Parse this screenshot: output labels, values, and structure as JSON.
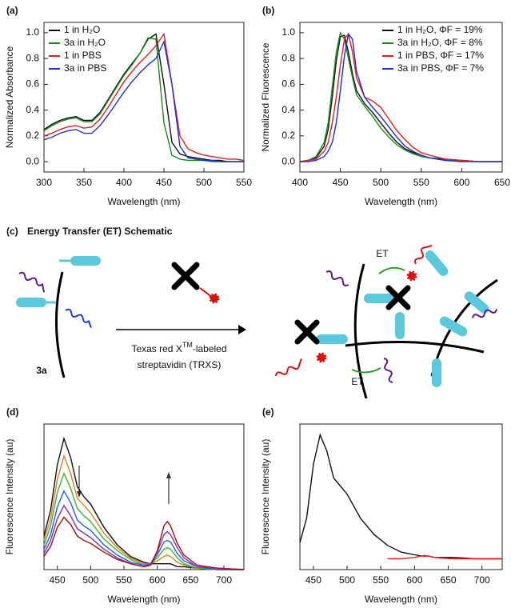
{
  "chart_data": [
    {
      "type": "line",
      "label": "(a)",
      "xlabel": "Wavelength (nm)",
      "ylabel": "Normalized Absorbance",
      "x": [
        300,
        310,
        320,
        330,
        340,
        350,
        360,
        370,
        380,
        390,
        400,
        410,
        420,
        430,
        440,
        450,
        460,
        470,
        480,
        490,
        500,
        510,
        520,
        530,
        540,
        550
      ],
      "xlim": [
        300,
        550
      ],
      "xticks": [
        300,
        350,
        400,
        450,
        500,
        550
      ],
      "ylim": [
        -0.08,
        1.08
      ],
      "yticks": [
        {
          "value": 0,
          "label": "0.0"
        },
        0.2,
        0.4,
        0.6,
        0.8,
        {
          "value": 1,
          "label": "1.0"
        }
      ],
      "legend": "upper left",
      "series": [
        {
          "name": "1 in H₂O",
          "color": "#111111",
          "values": [
            0.25,
            0.29,
            0.32,
            0.34,
            0.35,
            0.32,
            0.32,
            0.38,
            0.48,
            0.58,
            0.68,
            0.76,
            0.84,
            0.95,
            0.99,
            0.6,
            0.15,
            0.06,
            0.04,
            0.03,
            0.02,
            0.01,
            0.01,
            0,
            0,
            0
          ]
        },
        {
          "name": "3a in H₂O",
          "color": "#1a8a1a",
          "values": [
            0.24,
            0.28,
            0.31,
            0.33,
            0.34,
            0.31,
            0.31,
            0.37,
            0.47,
            0.57,
            0.67,
            0.75,
            0.84,
            0.96,
            0.95,
            0.3,
            0.05,
            0.02,
            0.01,
            0.01,
            0.01,
            0,
            0,
            0,
            0,
            0
          ]
        },
        {
          "name": "1 in PBS",
          "color": "#e02020",
          "values": [
            0.2,
            0.22,
            0.25,
            0.27,
            0.28,
            0.26,
            0.27,
            0.33,
            0.42,
            0.52,
            0.62,
            0.7,
            0.77,
            0.83,
            0.9,
            0.99,
            0.6,
            0.2,
            0.1,
            0.07,
            0.05,
            0.04,
            0.03,
            0.02,
            0.02,
            0.01
          ]
        },
        {
          "name": "3a in PBS",
          "color": "#2030d0",
          "values": [
            0.17,
            0.19,
            0.22,
            0.24,
            0.25,
            0.22,
            0.22,
            0.28,
            0.36,
            0.45,
            0.54,
            0.62,
            0.69,
            0.75,
            0.8,
            0.93,
            0.6,
            0.12,
            0.03,
            0.02,
            0.01,
            0.01,
            0,
            0,
            0,
            0
          ]
        }
      ]
    },
    {
      "type": "line",
      "label": "(b)",
      "xlabel": "Wavelength (nm)",
      "ylabel": "Normalized Fluorescence",
      "x": [
        400,
        410,
        420,
        430,
        435,
        440,
        445,
        450,
        455,
        460,
        465,
        470,
        480,
        490,
        500,
        510,
        520,
        530,
        540,
        550,
        560,
        580,
        600,
        620,
        650
      ],
      "xlim": [
        400,
        650
      ],
      "xticks": [
        400,
        450,
        500,
        550,
        600,
        650
      ],
      "ylim": [
        -0.08,
        1.08
      ],
      "yticks": [
        {
          "value": 0,
          "label": "0.0"
        },
        0.2,
        0.4,
        0.6,
        0.8,
        {
          "value": 1,
          "label": "1.0"
        }
      ],
      "legend": "upper right",
      "series": [
        {
          "name": "1 in H₂O, ΦF = 19%",
          "color": "#111111",
          "values": [
            0,
            0.01,
            0.03,
            0.12,
            0.25,
            0.5,
            0.78,
            0.97,
            0.98,
            0.85,
            0.68,
            0.55,
            0.45,
            0.38,
            0.3,
            0.22,
            0.15,
            0.1,
            0.07,
            0.05,
            0.03,
            0.02,
            0.01,
            0,
            0
          ]
        },
        {
          "name": "3a in H₂O, ΦF = 8%",
          "color": "#1a8a1a",
          "values": [
            0,
            0.01,
            0.04,
            0.15,
            0.3,
            0.58,
            0.85,
            1.0,
            0.95,
            0.8,
            0.65,
            0.52,
            0.43,
            0.35,
            0.26,
            0.19,
            0.13,
            0.09,
            0.06,
            0.04,
            0.03,
            0.01,
            0.01,
            0,
            0
          ]
        },
        {
          "name": "1 in PBS, ΦF = 17%",
          "color": "#e02020",
          "values": [
            0,
            0.01,
            0.02,
            0.08,
            0.15,
            0.3,
            0.5,
            0.75,
            0.95,
            0.99,
            0.85,
            0.65,
            0.5,
            0.47,
            0.42,
            0.33,
            0.24,
            0.17,
            0.11,
            0.07,
            0.05,
            0.02,
            0.01,
            0,
            0
          ]
        },
        {
          "name": "3a in PBS, ΦF = 7%",
          "color": "#2030d0",
          "values": [
            0,
            0,
            0.01,
            0.04,
            0.08,
            0.15,
            0.3,
            0.55,
            0.82,
            0.99,
            0.95,
            0.7,
            0.5,
            0.42,
            0.35,
            0.27,
            0.19,
            0.12,
            0.08,
            0.05,
            0.03,
            0.01,
            0,
            0,
            0
          ]
        }
      ]
    },
    {
      "type": "line",
      "label": "(d)",
      "xlabel": "Wavelength (nm)",
      "ylabel": "Fluorescence Intensity (au)",
      "x": [
        430,
        440,
        450,
        460,
        470,
        480,
        490,
        500,
        520,
        540,
        560,
        580,
        590,
        600,
        610,
        615,
        620,
        630,
        640,
        660,
        690,
        730
      ],
      "xlim": [
        430,
        730
      ],
      "xticks": [
        450,
        500,
        550,
        600,
        650,
        700
      ],
      "ylim": [
        0,
        1
      ],
      "series": [
        {
          "color": "#111111",
          "values": [
            0.23,
            0.41,
            0.72,
            0.9,
            0.77,
            0.57,
            0.5,
            0.45,
            0.29,
            0.17,
            0.09,
            0.05,
            0.04,
            0.04,
            0.04,
            0.04,
            0.04,
            0.02,
            0.02,
            0.01,
            0,
            0
          ]
        },
        {
          "color": "#e08020",
          "values": [
            0.2,
            0.35,
            0.62,
            0.78,
            0.66,
            0.49,
            0.44,
            0.39,
            0.25,
            0.15,
            0.08,
            0.04,
            0.04,
            0.06,
            0.09,
            0.1,
            0.09,
            0.05,
            0.03,
            0.01,
            0,
            0
          ]
        },
        {
          "color": "#40b040",
          "values": [
            0.17,
            0.3,
            0.53,
            0.66,
            0.56,
            0.42,
            0.37,
            0.33,
            0.21,
            0.13,
            0.07,
            0.03,
            0.04,
            0.08,
            0.14,
            0.15,
            0.14,
            0.08,
            0.04,
            0.01,
            0,
            0
          ]
        },
        {
          "color": "#2060e0",
          "values": [
            0.14,
            0.24,
            0.43,
            0.54,
            0.46,
            0.34,
            0.3,
            0.27,
            0.17,
            0.1,
            0.05,
            0.03,
            0.04,
            0.1,
            0.19,
            0.2,
            0.19,
            0.11,
            0.06,
            0.02,
            0,
            0
          ]
        },
        {
          "color": "#8030b0",
          "values": [
            0.11,
            0.2,
            0.35,
            0.44,
            0.37,
            0.28,
            0.25,
            0.22,
            0.14,
            0.08,
            0.04,
            0.02,
            0.04,
            0.12,
            0.24,
            0.26,
            0.24,
            0.15,
            0.08,
            0.02,
            0.01,
            0
          ]
        },
        {
          "color": "#a01010",
          "values": [
            0.09,
            0.16,
            0.29,
            0.36,
            0.31,
            0.23,
            0.2,
            0.18,
            0.12,
            0.07,
            0.04,
            0.02,
            0.03,
            0.13,
            0.3,
            0.33,
            0.3,
            0.18,
            0.1,
            0.03,
            0.01,
            0
          ]
        }
      ]
    },
    {
      "type": "line",
      "label": "(e)",
      "xlabel": "Wavelength (nm)",
      "ylabel": "Fluorescence Intensity (au)",
      "x": [
        430,
        440,
        450,
        460,
        470,
        480,
        490,
        500,
        520,
        540,
        560,
        580,
        590,
        600,
        610,
        615,
        620,
        630,
        640,
        660,
        690,
        730
      ],
      "xlim": [
        430,
        730
      ],
      "xticks": [
        450,
        500,
        550,
        600,
        650,
        700
      ],
      "ylim": [
        -0.08,
        1
      ],
      "series": [
        {
          "color": "#111111",
          "values": [
            0.12,
            0.3,
            0.7,
            0.92,
            0.8,
            0.6,
            0.54,
            0.48,
            0.3,
            0.18,
            0.1,
            0.05,
            0.04,
            0.03,
            0.02,
            0.02,
            0.02,
            0.01,
            0.01,
            0.01,
            0,
            0
          ]
        },
        {
          "color": "#e02020",
          "values": [
            null,
            null,
            null,
            null,
            null,
            null,
            null,
            null,
            null,
            null,
            0,
            0,
            0.005,
            0.01,
            0.02,
            0.025,
            0.02,
            0.01,
            0.005,
            0,
            0,
            0
          ]
        }
      ]
    }
  ],
  "schematic": {
    "label": "(c)",
    "title": "Energy Transfer (ET) Schematic",
    "compound": "3a",
    "reagent_pre": "Texas red X",
    "reagent_sup": "TM",
    "reagent_post": "-labeled",
    "reagent_line2": "streptavidin (TRXS)",
    "et_labels": [
      "ET",
      "ET"
    ]
  }
}
